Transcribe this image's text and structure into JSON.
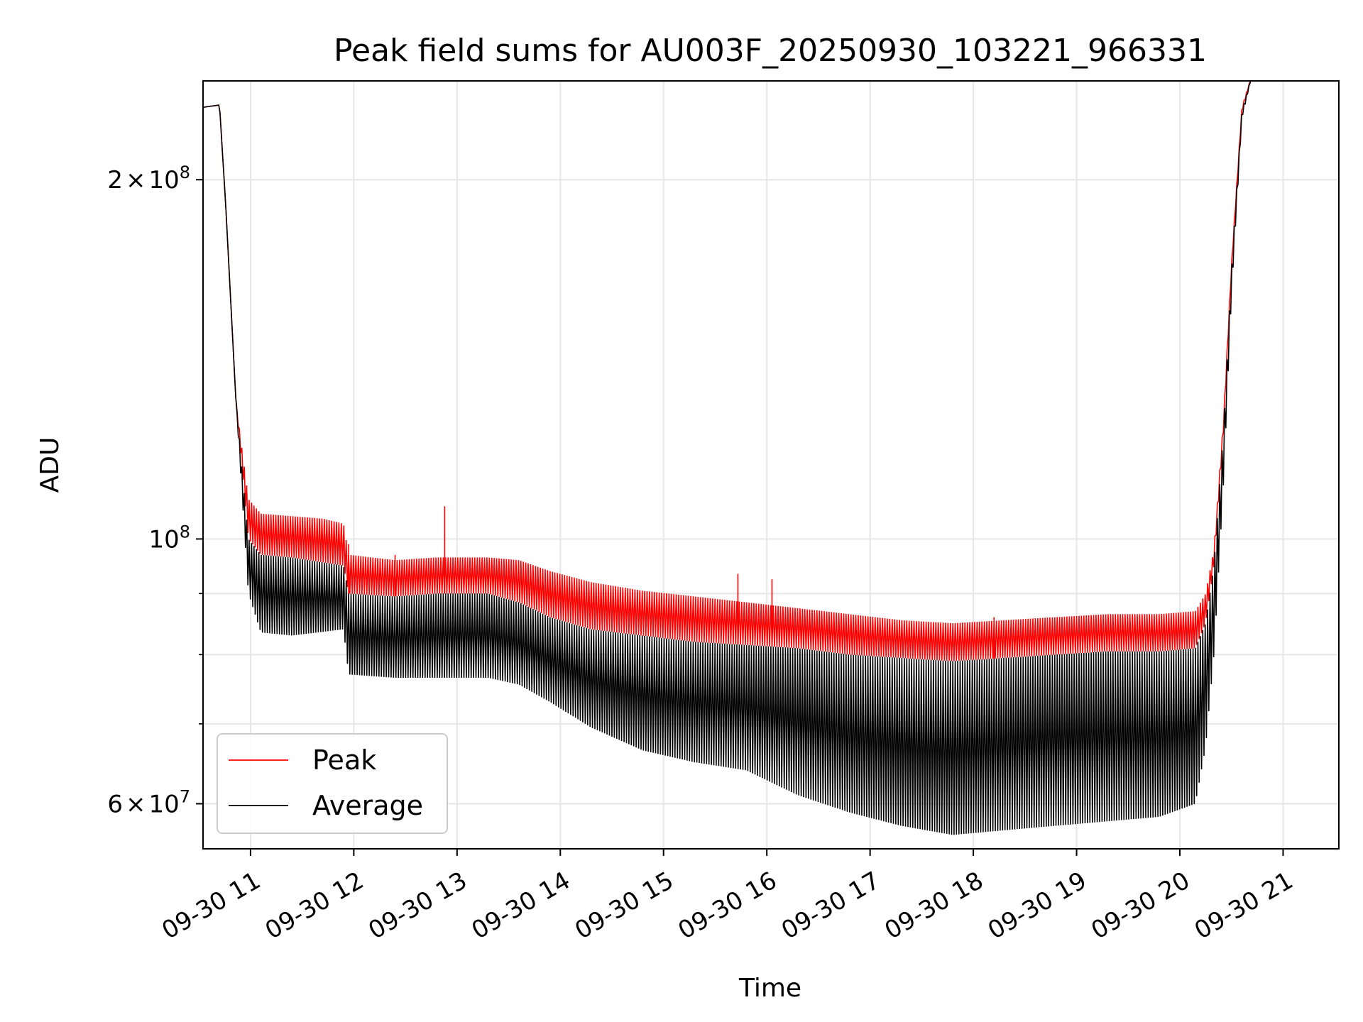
{
  "chart_data": {
    "type": "line",
    "title": "Peak field sums for AU003F_20250930_103221_966331",
    "xlabel": "Time",
    "ylabel": "ADU",
    "y_scale": "log",
    "ylim": [
      55000000,
      242000000
    ],
    "xlim": [
      10.54,
      21.54
    ],
    "grid": true,
    "legend_position": "lower-left",
    "x_ticks": [
      {
        "v": 11,
        "label": "09-30 11"
      },
      {
        "v": 12,
        "label": "09-30 12"
      },
      {
        "v": 13,
        "label": "09-30 13"
      },
      {
        "v": 14,
        "label": "09-30 14"
      },
      {
        "v": 15,
        "label": "09-30 15"
      },
      {
        "v": 16,
        "label": "09-30 16"
      },
      {
        "v": 17,
        "label": "09-30 17"
      },
      {
        "v": 18,
        "label": "09-30 18"
      },
      {
        "v": 19,
        "label": "09-30 19"
      },
      {
        "v": 20,
        "label": "09-30 20"
      },
      {
        "v": 21,
        "label": "09-30 21"
      }
    ],
    "y_major_ticks": [
      {
        "v": 60000000,
        "mant": "6",
        "times": "×",
        "base": "10",
        "exp": "7"
      },
      {
        "v": 100000000,
        "mant": "",
        "times": "",
        "base": "10",
        "exp": "8"
      },
      {
        "v": 200000000,
        "mant": "2",
        "times": "×",
        "base": "10",
        "exp": "8"
      }
    ],
    "y_minor_ticks": [
      70000000,
      80000000,
      90000000
    ],
    "series": [
      {
        "name": "Peak",
        "color": "#ff0000",
        "upper_envelope": [
          [
            10.54,
            230000000.0
          ],
          [
            10.7,
            231000000.0
          ],
          [
            10.76,
            190000000.0
          ],
          [
            10.86,
            130000000.0
          ],
          [
            10.98,
            108000000.0
          ],
          [
            11.1,
            105000000.0
          ],
          [
            11.4,
            104500000.0
          ],
          [
            11.7,
            104000000.0
          ],
          [
            11.9,
            103000000.0
          ],
          [
            11.95,
            97000000.0
          ],
          [
            12.4,
            96000000.0
          ],
          [
            12.8,
            96500000.0
          ],
          [
            13.3,
            96500000.0
          ],
          [
            13.6,
            96000000.0
          ],
          [
            13.9,
            94000000.0
          ],
          [
            14.3,
            92000000.0
          ],
          [
            14.8,
            90500000.0
          ],
          [
            15.3,
            89500000.0
          ],
          [
            15.8,
            88500000.0
          ],
          [
            16.3,
            87500000.0
          ],
          [
            16.8,
            86500000.0
          ],
          [
            17.3,
            85500000.0
          ],
          [
            17.8,
            85000000.0
          ],
          [
            18.3,
            85500000.0
          ],
          [
            18.8,
            86000000.0
          ],
          [
            19.3,
            86500000.0
          ],
          [
            19.8,
            86500000.0
          ],
          [
            20.15,
            87000000.0
          ],
          [
            20.25,
            90000000.0
          ],
          [
            20.33,
            98000000.0
          ],
          [
            20.42,
            125000000.0
          ],
          [
            20.5,
            170000000.0
          ],
          [
            20.6,
            230000000.0
          ],
          [
            20.7,
            245000000.0
          ]
        ],
        "lower_envelope": [
          [
            10.54,
            230000000.0
          ],
          [
            10.7,
            231000000.0
          ],
          [
            10.76,
            190000000.0
          ],
          [
            10.86,
            130000000.0
          ],
          [
            10.98,
            100000000.0
          ],
          [
            11.1,
            97000000.0
          ],
          [
            11.4,
            96500000.0
          ],
          [
            11.9,
            95000000.0
          ],
          [
            11.95,
            90000000.0
          ],
          [
            12.4,
            89500000.0
          ],
          [
            12.8,
            90000000.0
          ],
          [
            13.3,
            90000000.0
          ],
          [
            13.6,
            88500000.0
          ],
          [
            13.9,
            86000000.0
          ],
          [
            14.3,
            84000000.0
          ],
          [
            14.8,
            83000000.0
          ],
          [
            15.3,
            82000000.0
          ],
          [
            15.8,
            81500000.0
          ],
          [
            16.3,
            81000000.0
          ],
          [
            16.8,
            80000000.0
          ],
          [
            17.3,
            79500000.0
          ],
          [
            17.8,
            79000000.0
          ],
          [
            18.3,
            79500000.0
          ],
          [
            18.8,
            80000000.0
          ],
          [
            19.3,
            80500000.0
          ],
          [
            19.8,
            80500000.0
          ],
          [
            20.15,
            81000000.0
          ],
          [
            20.25,
            85000000.0
          ],
          [
            20.33,
            95000000.0
          ],
          [
            20.42,
            122000000.0
          ],
          [
            20.5,
            168000000.0
          ],
          [
            20.6,
            228000000.0
          ],
          [
            20.7,
            245000000.0
          ]
        ],
        "spikes": [
          [
            11.95,
            99000000.0
          ],
          [
            12.4,
            97000000.0
          ],
          [
            12.88,
            106500000.0
          ],
          [
            15.72,
            93500000.0
          ],
          [
            16.05,
            92500000.0
          ],
          [
            18.2,
            86000000.0
          ]
        ]
      },
      {
        "name": "Average",
        "color": "#000000",
        "upper_envelope": [
          [
            10.54,
            230000000.0
          ],
          [
            10.7,
            231000000.0
          ],
          [
            10.76,
            190000000.0
          ],
          [
            10.86,
            130000000.0
          ],
          [
            10.98,
            100000000.0
          ],
          [
            11.1,
            97000000.0
          ],
          [
            11.4,
            96500000.0
          ],
          [
            11.9,
            95000000.0
          ],
          [
            11.95,
            90000000.0
          ],
          [
            12.4,
            89500000.0
          ],
          [
            12.8,
            90000000.0
          ],
          [
            13.3,
            90000000.0
          ],
          [
            13.6,
            88500000.0
          ],
          [
            13.9,
            86000000.0
          ],
          [
            14.3,
            84000000.0
          ],
          [
            14.8,
            83000000.0
          ],
          [
            15.3,
            82000000.0
          ],
          [
            15.8,
            81500000.0
          ],
          [
            16.3,
            81000000.0
          ],
          [
            16.8,
            80000000.0
          ],
          [
            17.3,
            79500000.0
          ],
          [
            17.8,
            79000000.0
          ],
          [
            18.3,
            79500000.0
          ],
          [
            18.8,
            80000000.0
          ],
          [
            19.3,
            80500000.0
          ],
          [
            19.8,
            80500000.0
          ],
          [
            20.15,
            81000000.0
          ],
          [
            20.25,
            85000000.0
          ],
          [
            20.33,
            95000000.0
          ],
          [
            20.42,
            122000000.0
          ],
          [
            20.5,
            168000000.0
          ],
          [
            20.6,
            228000000.0
          ],
          [
            20.7,
            245000000.0
          ]
        ],
        "lower_envelope": [
          [
            10.54,
            230000000.0
          ],
          [
            10.7,
            231000000.0
          ],
          [
            10.76,
            190000000.0
          ],
          [
            10.86,
            130000000.0
          ],
          [
            10.98,
            90000000.0
          ],
          [
            11.1,
            83500000.0
          ],
          [
            11.4,
            83000000.0
          ],
          [
            11.9,
            84000000.0
          ],
          [
            11.95,
            77000000.0
          ],
          [
            12.4,
            76500000.0
          ],
          [
            12.8,
            76500000.0
          ],
          [
            13.3,
            76500000.0
          ],
          [
            13.6,
            75500000.0
          ],
          [
            13.9,
            73000000.0
          ],
          [
            14.3,
            69500000.0
          ],
          [
            14.8,
            66500000.0
          ],
          [
            15.3,
            65000000.0
          ],
          [
            15.8,
            64000000.0
          ],
          [
            16.3,
            61000000.0
          ],
          [
            16.8,
            59000000.0
          ],
          [
            17.3,
            57500000.0
          ],
          [
            17.8,
            56500000.0
          ],
          [
            18.3,
            57000000.0
          ],
          [
            18.8,
            57500000.0
          ],
          [
            19.3,
            58000000.0
          ],
          [
            19.8,
            58500000.0
          ],
          [
            20.15,
            60000000.0
          ],
          [
            20.25,
            67000000.0
          ],
          [
            20.33,
            80000000.0
          ],
          [
            20.42,
            110000000.0
          ],
          [
            20.5,
            160000000.0
          ],
          [
            20.6,
            225000000.0
          ],
          [
            20.7,
            245000000.0
          ]
        ]
      }
    ]
  }
}
